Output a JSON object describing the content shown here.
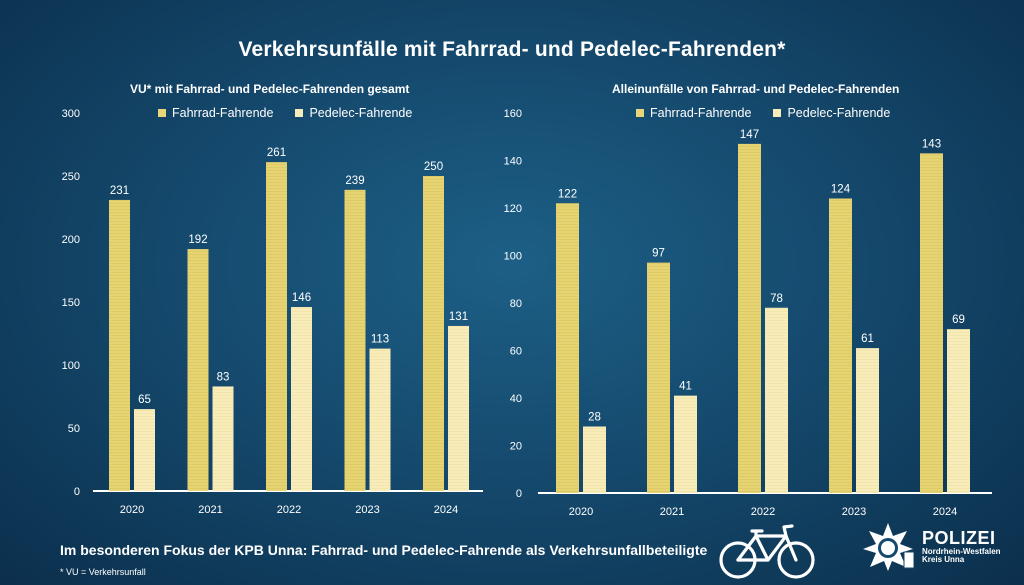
{
  "title": "Verkehrsunfälle mit Fahrrad- und Pedelec-Fahrenden*",
  "colors": {
    "fahrrad": "#e8d67a",
    "pedelec": "#f8edba",
    "axis": "#ffffff"
  },
  "chart_data": [
    {
      "type": "bar",
      "title": "VU* mit Fahrrad- und Pedelec-Fahrenden  gesamt",
      "categories": [
        "2020",
        "2021",
        "2022",
        "2023",
        "2024"
      ],
      "series": [
        {
          "name": "Fahrrad-Fahrende",
          "values": [
            231,
            192,
            261,
            239,
            250
          ]
        },
        {
          "name": "Pedelec-Fahrende",
          "values": [
            65,
            83,
            146,
            113,
            131
          ]
        }
      ],
      "yticks": [
        "0",
        "50",
        "100",
        "150",
        "200",
        "250",
        "300"
      ],
      "ylim": [
        0,
        300
      ],
      "legend": "top",
      "grid": false
    },
    {
      "type": "bar",
      "title": "Alleinunfälle  von Fahrrad- und Pedelec-Fahrenden",
      "categories": [
        "2020",
        "2021",
        "2022",
        "2023",
        "2024"
      ],
      "series": [
        {
          "name": "Fahrrad-Fahrende",
          "values": [
            122,
            97,
            147,
            124,
            143
          ]
        },
        {
          "name": "Pedelec-Fahrende",
          "values": [
            28,
            41,
            78,
            61,
            69
          ]
        }
      ],
      "yticks": [
        "0",
        "20",
        "40",
        "60",
        "80",
        "100",
        "120",
        "140",
        "160"
      ],
      "ylim": [
        0,
        160
      ],
      "legend": "top",
      "grid": false
    }
  ],
  "footer": {
    "text": "Im besonderen Fokus der KPB Unna: Fahrrad- und Pedelec-Fahrende als Verkehrsunfallbeteiligte",
    "footnote": "* VU = Verkehrsunfall"
  },
  "logo": {
    "main": "POLIZEI",
    "line1": "Nordrhein-Westfalen",
    "line2": "Kreis Unna",
    "icon": "police-star-icon"
  },
  "bike_icon": "bicycle-icon"
}
